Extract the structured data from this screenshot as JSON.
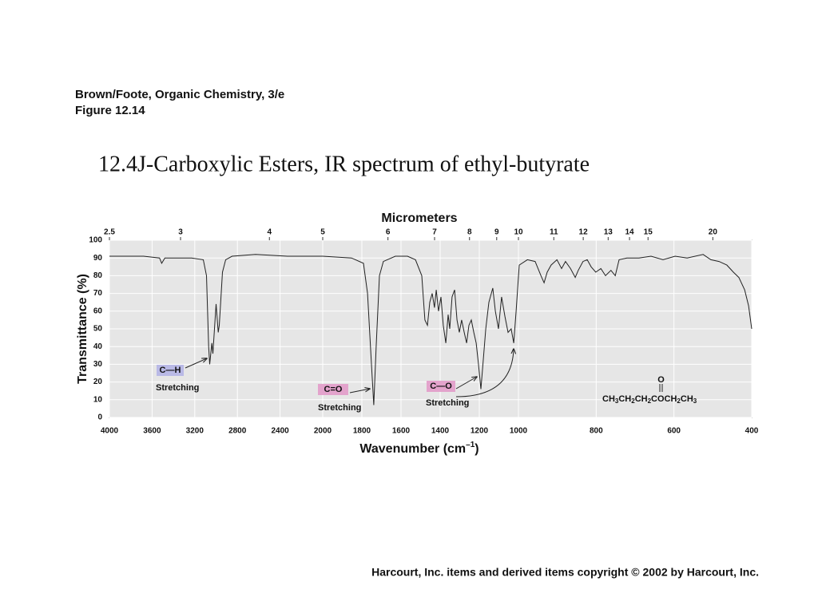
{
  "source": "Brown/Foote, Organic Chemistry, 3/e",
  "figure": "Figure 12.14",
  "title": "12.4J-Carboxylic Esters, IR spectrum of ethyl-butyrate",
  "copyright": "Harcourt, Inc. items and derived items copyright © 2002 by Harcourt, Inc.",
  "chart_data": {
    "type": "line",
    "top_axis_label": "Micrometers",
    "top_ticks": [
      2.5,
      3,
      4,
      5,
      6,
      7,
      8,
      9,
      10,
      11,
      12,
      13,
      14,
      15,
      20
    ],
    "y_label": "Transmittance (%)",
    "x_label": [
      "Wavenumber (cm",
      "–1",
      ")"
    ],
    "xlim": [
      4000,
      400
    ],
    "x_breaks": [
      2000,
      1000
    ],
    "xticks": [
      4000,
      3600,
      3200,
      2800,
      2400,
      2000,
      1800,
      1600,
      1400,
      1200,
      1000,
      800,
      600,
      400
    ],
    "ylim": [
      0,
      100
    ],
    "yticks": [
      0,
      10,
      20,
      30,
      40,
      50,
      60,
      70,
      80,
      90,
      100
    ],
    "grid": true,
    "color": "#222222",
    "x": [
      4000,
      3680,
      3530,
      3510,
      3480,
      3230,
      3120,
      3090,
      3070,
      3060,
      3040,
      3030,
      3010,
      3000,
      2980,
      2970,
      2940,
      2910,
      2850,
      2630,
      2330,
      2000,
      1853,
      1792,
      1771,
      1751,
      1739,
      1727,
      1710,
      1690,
      1629,
      1567,
      1526,
      1494,
      1478,
      1465,
      1453,
      1441,
      1429,
      1420,
      1408,
      1396,
      1384,
      1371,
      1359,
      1351,
      1339,
      1326,
      1314,
      1302,
      1290,
      1277,
      1265,
      1253,
      1241,
      1228,
      1216,
      1204,
      1192,
      1180,
      1167,
      1151,
      1131,
      1118,
      1102,
      1086,
      1069,
      1053,
      1037,
      1024,
      1012,
      998,
      977,
      957,
      942,
      934,
      926,
      916,
      901,
      889,
      879,
      866,
      854,
      846,
      834,
      823,
      813,
      801,
      788,
      776,
      762,
      751,
      741,
      721,
      690,
      659,
      628,
      597,
      566,
      525,
      505,
      484,
      464,
      447,
      433,
      418,
      408,
      400
    ],
    "values": [
      91,
      91,
      90,
      87,
      90,
      90,
      89,
      80,
      40,
      30,
      42,
      36,
      55,
      64,
      48,
      52,
      82,
      89,
      91,
      92,
      91,
      91,
      90,
      87,
      70,
      30,
      7,
      40,
      80,
      88,
      91,
      91,
      89,
      80,
      55,
      52,
      65,
      70,
      62,
      72,
      60,
      68,
      52,
      42,
      58,
      50,
      68,
      72,
      55,
      48,
      55,
      48,
      42,
      52,
      55,
      48,
      42,
      30,
      16,
      32,
      50,
      65,
      73,
      60,
      50,
      68,
      57,
      48,
      50,
      42,
      60,
      86,
      89,
      88,
      80,
      76,
      82,
      86,
      89,
      84,
      88,
      84,
      79,
      83,
      88,
      89,
      85,
      82,
      84,
      80,
      83,
      80,
      89,
      90,
      90,
      91,
      89,
      91,
      90,
      92,
      89,
      88,
      86,
      82,
      79,
      72,
      63,
      50
    ],
    "annotations": [
      {
        "label": "C—H",
        "text": "Stretching"
      },
      {
        "label": "C=O",
        "text": "Stretching"
      },
      {
        "label": "C—O",
        "text": "Stretching"
      }
    ],
    "formula": {
      "carbonyl": "O",
      "parts": [
        "CH",
        "3",
        "CH",
        "2",
        "CH",
        "2",
        "COCH",
        "2",
        "CH",
        "3"
      ]
    }
  }
}
